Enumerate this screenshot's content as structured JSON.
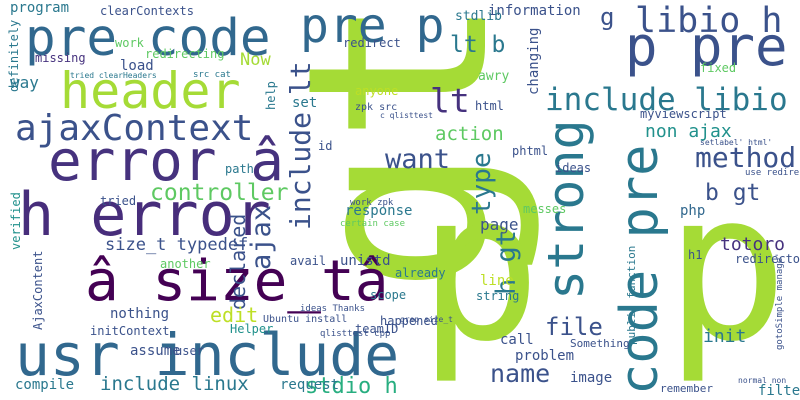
{
  "words": [
    "gt",
    "p p",
    "usr include",
    "error â",
    "h error",
    "â size_tâ",
    "pre code",
    "header",
    "pre p",
    "ajaxContext",
    "strong",
    "code pre",
    "p pre",
    "libio h",
    "include libio",
    "method",
    "b gt",
    "totoro",
    "include lt",
    "lt",
    "lt b",
    "controller",
    "declared",
    "size_t typedef",
    "ajax",
    "want",
    "type",
    "action",
    "non ajax",
    "file",
    "name",
    "stdio h",
    "include linux",
    "h gt",
    "init",
    "edit",
    "Now",
    "page",
    "response",
    "g",
    "program",
    "clearContexts",
    "missing",
    "definitely",
    "way",
    "load",
    "work",
    "redirecting",
    "tried clearHeaders",
    "src cat",
    "information",
    "changing",
    "stdlib",
    "redirect",
    "html",
    "awry",
    "anyone",
    "zpk src",
    "c qlisttest",
    "id",
    "set",
    "help",
    "phtml",
    "ideas",
    "messes",
    "php",
    "redirector",
    "myviewscript",
    "fixed",
    "setlabel' html'",
    "use redirect",
    "filter",
    "remember",
    "normal non",
    "image",
    "Something",
    "problem",
    "call",
    "line",
    "string",
    "already",
    "happened",
    "scope",
    "unistd",
    "avail",
    "certain case",
    "work zpk",
    "teamID",
    "ideas Thanks",
    "Ubuntu install",
    "Helper",
    "nothing",
    "initContext",
    "assume",
    "user",
    "another",
    "path",
    "tried",
    "verified",
    "AjaxContent",
    "compile",
    "request",
    "grep size_t",
    "qlisttest cpp",
    "public function",
    "gotoSimple manage'",
    "h1"
  ]
}
